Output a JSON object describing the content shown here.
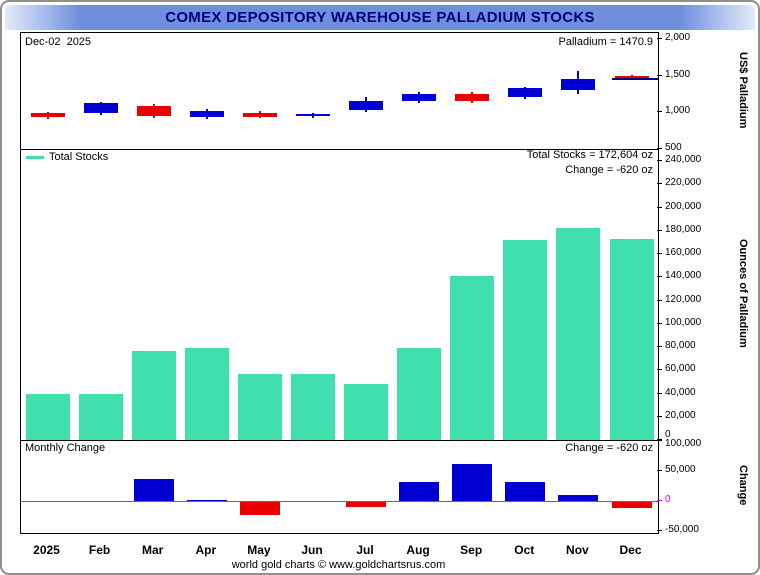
{
  "title": "COMEX DEPOSITORY WAREHOUSE PALLADIUM STOCKS",
  "footer": "world gold charts © www.goldchartsrus.com",
  "price_panel": {
    "date_label": "Dec-02  2025",
    "price_label": "Palladium = 1470.9",
    "axis_label": "US$ Palladium"
  },
  "stocks_panel": {
    "legend_label": "Total Stocks",
    "total_label": "Total Stocks = 172,604 oz",
    "change_label": "Change = -620 oz",
    "axis_label": "Ounces of Palladium"
  },
  "change_panel": {
    "title": "Monthly Change",
    "change_label": "Change = -620 oz",
    "axis_label": "Change"
  },
  "colors": {
    "stocks_bar": "#3fdfae",
    "up": "#0000d2",
    "down": "#e80000",
    "zero_line": "#ff00ff",
    "current_price_line": "#000080",
    "title_text": "#00007e",
    "titlebar_blue": "#6f8ede"
  },
  "chart_data": [
    {
      "type": "candlestick",
      "name": "US$ Palladium monthly price 2025",
      "categories": [
        "2025",
        "Feb",
        "Mar",
        "Apr",
        "May",
        "Jun",
        "Jul",
        "Aug",
        "Sep",
        "Oct",
        "Nov",
        "Dec"
      ],
      "yticks": [
        500,
        1000,
        1500,
        2000
      ],
      "ylim": [
        500,
        2082
      ],
      "current_price": 1470.9,
      "candles": [
        {
          "open": 985,
          "high": 1005,
          "low": 910,
          "close": 930,
          "dir": "down"
        },
        {
          "open": 995,
          "high": 1145,
          "low": 960,
          "close": 1125,
          "dir": "up"
        },
        {
          "open": 1090,
          "high": 1120,
          "low": 925,
          "close": 950,
          "dir": "down"
        },
        {
          "open": 935,
          "high": 1050,
          "low": 905,
          "close": 1020,
          "dir": "up"
        },
        {
          "open": 995,
          "high": 1015,
          "low": 915,
          "close": 940,
          "dir": "down"
        },
        {
          "open": 950,
          "high": 995,
          "low": 920,
          "close": 975,
          "dir": "up"
        },
        {
          "open": 1030,
          "high": 1210,
          "low": 1005,
          "close": 1160,
          "dir": "up"
        },
        {
          "open": 1150,
          "high": 1275,
          "low": 1125,
          "close": 1245,
          "dir": "up"
        },
        {
          "open": 1245,
          "high": 1280,
          "low": 1130,
          "close": 1155,
          "dir": "down"
        },
        {
          "open": 1205,
          "high": 1345,
          "low": 1185,
          "close": 1330,
          "dir": "up"
        },
        {
          "open": 1300,
          "high": 1570,
          "low": 1245,
          "close": 1460,
          "dir": "up"
        },
        {
          "open": 1500,
          "high": 1515,
          "low": 1435,
          "close": 1470.9,
          "dir": "down"
        }
      ]
    },
    {
      "type": "bar",
      "name": "Total Stocks (oz)",
      "categories": [
        "2025",
        "Feb",
        "Mar",
        "Apr",
        "May",
        "Jun",
        "Jul",
        "Aug",
        "Sep",
        "Oct",
        "Nov",
        "Dec"
      ],
      "values": [
        40000,
        40000,
        77000,
        79000,
        57000,
        57000,
        48000,
        79000,
        141000,
        172000,
        182000,
        172604
      ],
      "ylim": [
        0,
        258000
      ],
      "ytick_step": 20000,
      "ytick_max": 240000,
      "ylabel": "Ounces of Palladium"
    },
    {
      "type": "bar",
      "name": "Monthly Change (oz)",
      "categories": [
        "2025",
        "Feb",
        "Mar",
        "Apr",
        "May",
        "Jun",
        "Jul",
        "Aug",
        "Sep",
        "Oct",
        "Nov",
        "Dec"
      ],
      "values": [
        0,
        0,
        37000,
        2000,
        -22000,
        0,
        -9000,
        31000,
        62000,
        31000,
        10000,
        -9396
      ],
      "yticks": [
        -50000,
        0,
        50000,
        100000
      ],
      "ylim": [
        -53000,
        115000
      ],
      "ylabel": "Change"
    }
  ]
}
